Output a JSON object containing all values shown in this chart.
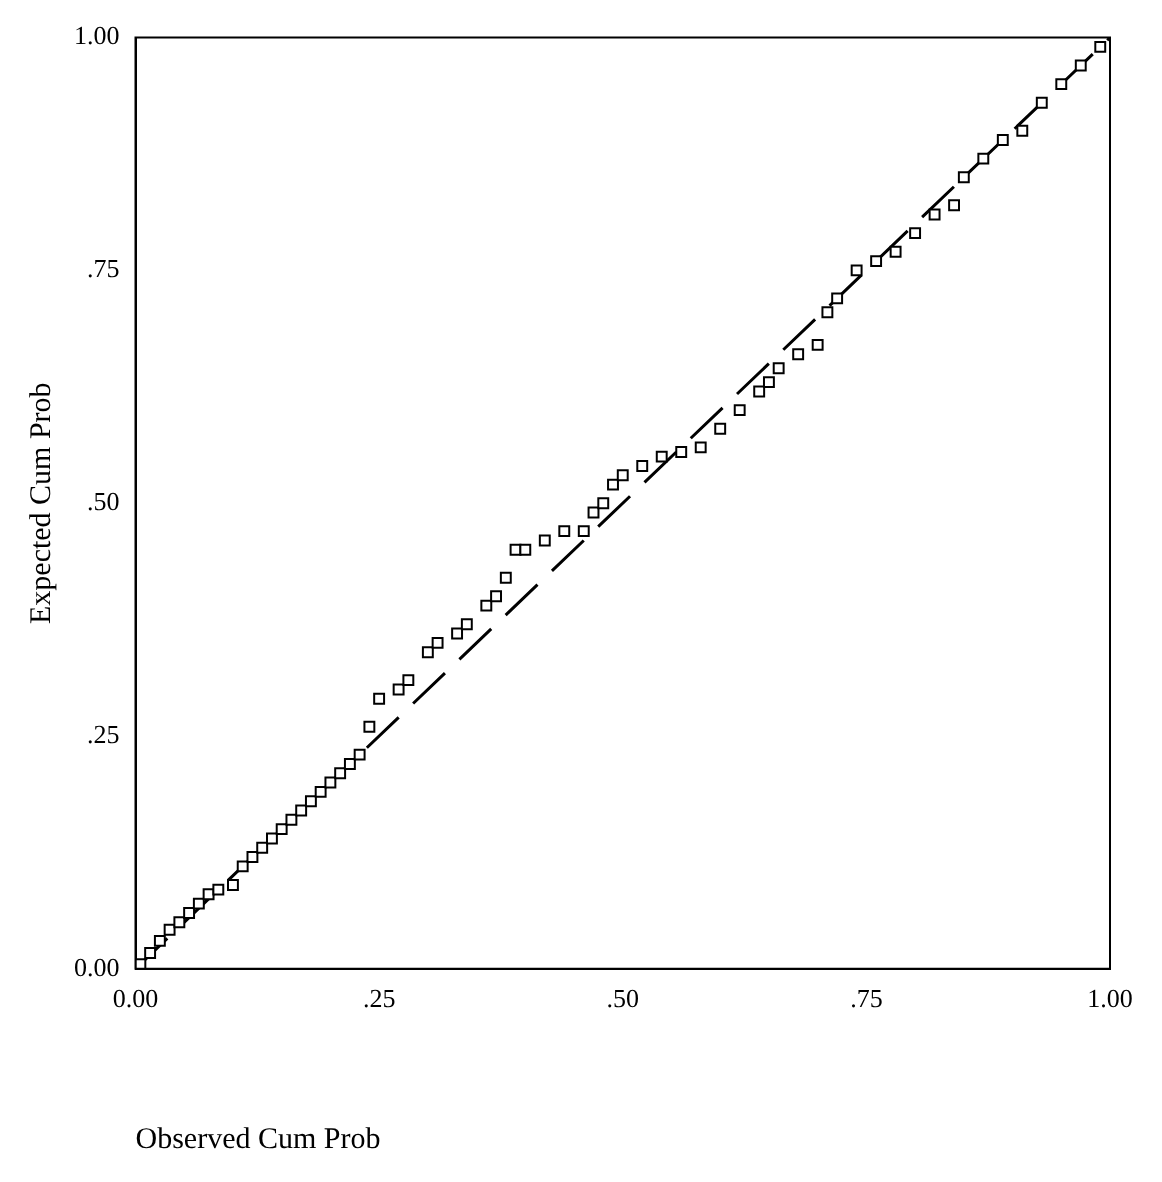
{
  "chart_data": {
    "type": "scatter",
    "xlabel": "Observed Cum Prob",
    "ylabel": "Expected Cum Prob",
    "xlim": [
      0,
      1
    ],
    "ylim": [
      0,
      1
    ],
    "xticks": [
      {
        "value": 0,
        "label": "0.00"
      },
      {
        "value": 0.25,
        "label": ".25"
      },
      {
        "value": 0.5,
        "label": ".50"
      },
      {
        "value": 0.75,
        "label": ".75"
      },
      {
        "value": 1,
        "label": "1.00"
      }
    ],
    "yticks": [
      {
        "value": 0,
        "label": "0.00"
      },
      {
        "value": 0.25,
        "label": ".25"
      },
      {
        "value": 0.5,
        "label": ".50"
      },
      {
        "value": 0.75,
        "label": ".75"
      },
      {
        "value": 1,
        "label": "1.00"
      }
    ],
    "grid": false,
    "legend": false,
    "series": [
      {
        "color": "#000000",
        "marker": "square",
        "x": [
          0.005,
          0.015,
          0.025,
          0.035,
          0.045,
          0.055,
          0.065,
          0.075,
          0.085,
          0.1,
          0.11,
          0.12,
          0.13,
          0.14,
          0.15,
          0.16,
          0.17,
          0.18,
          0.19,
          0.2,
          0.21,
          0.22,
          0.23,
          0.24,
          0.25,
          0.27,
          0.28,
          0.3,
          0.31,
          0.33,
          0.34,
          0.36,
          0.37,
          0.38,
          0.39,
          0.4,
          0.42,
          0.44,
          0.46,
          0.47,
          0.48,
          0.49,
          0.5,
          0.52,
          0.54,
          0.56,
          0.58,
          0.6,
          0.62,
          0.64,
          0.65,
          0.66,
          0.68,
          0.7,
          0.71,
          0.72,
          0.74,
          0.76,
          0.78,
          0.8,
          0.82,
          0.84,
          0.85,
          0.87,
          0.89,
          0.91,
          0.93,
          0.95,
          0.97,
          0.99
        ],
        "values": [
          0.005,
          0.017,
          0.03,
          0.042,
          0.05,
          0.06,
          0.07,
          0.08,
          0.085,
          0.09,
          0.11,
          0.12,
          0.13,
          0.14,
          0.15,
          0.16,
          0.17,
          0.18,
          0.19,
          0.2,
          0.21,
          0.22,
          0.23,
          0.26,
          0.29,
          0.3,
          0.31,
          0.34,
          0.35,
          0.36,
          0.37,
          0.39,
          0.4,
          0.42,
          0.45,
          0.45,
          0.46,
          0.47,
          0.47,
          0.49,
          0.5,
          0.52,
          0.53,
          0.54,
          0.55,
          0.555,
          0.56,
          0.58,
          0.6,
          0.62,
          0.63,
          0.645,
          0.66,
          0.67,
          0.705,
          0.72,
          0.75,
          0.76,
          0.77,
          0.79,
          0.81,
          0.82,
          0.85,
          0.87,
          0.89,
          0.9,
          0.93,
          0.95,
          0.97,
          0.99
        ]
      },
      {
        "type": "line",
        "color": "#000000",
        "marker": "none",
        "line_style": "dashed",
        "x": [
          0,
          1
        ],
        "values": [
          0,
          1
        ]
      }
    ]
  }
}
